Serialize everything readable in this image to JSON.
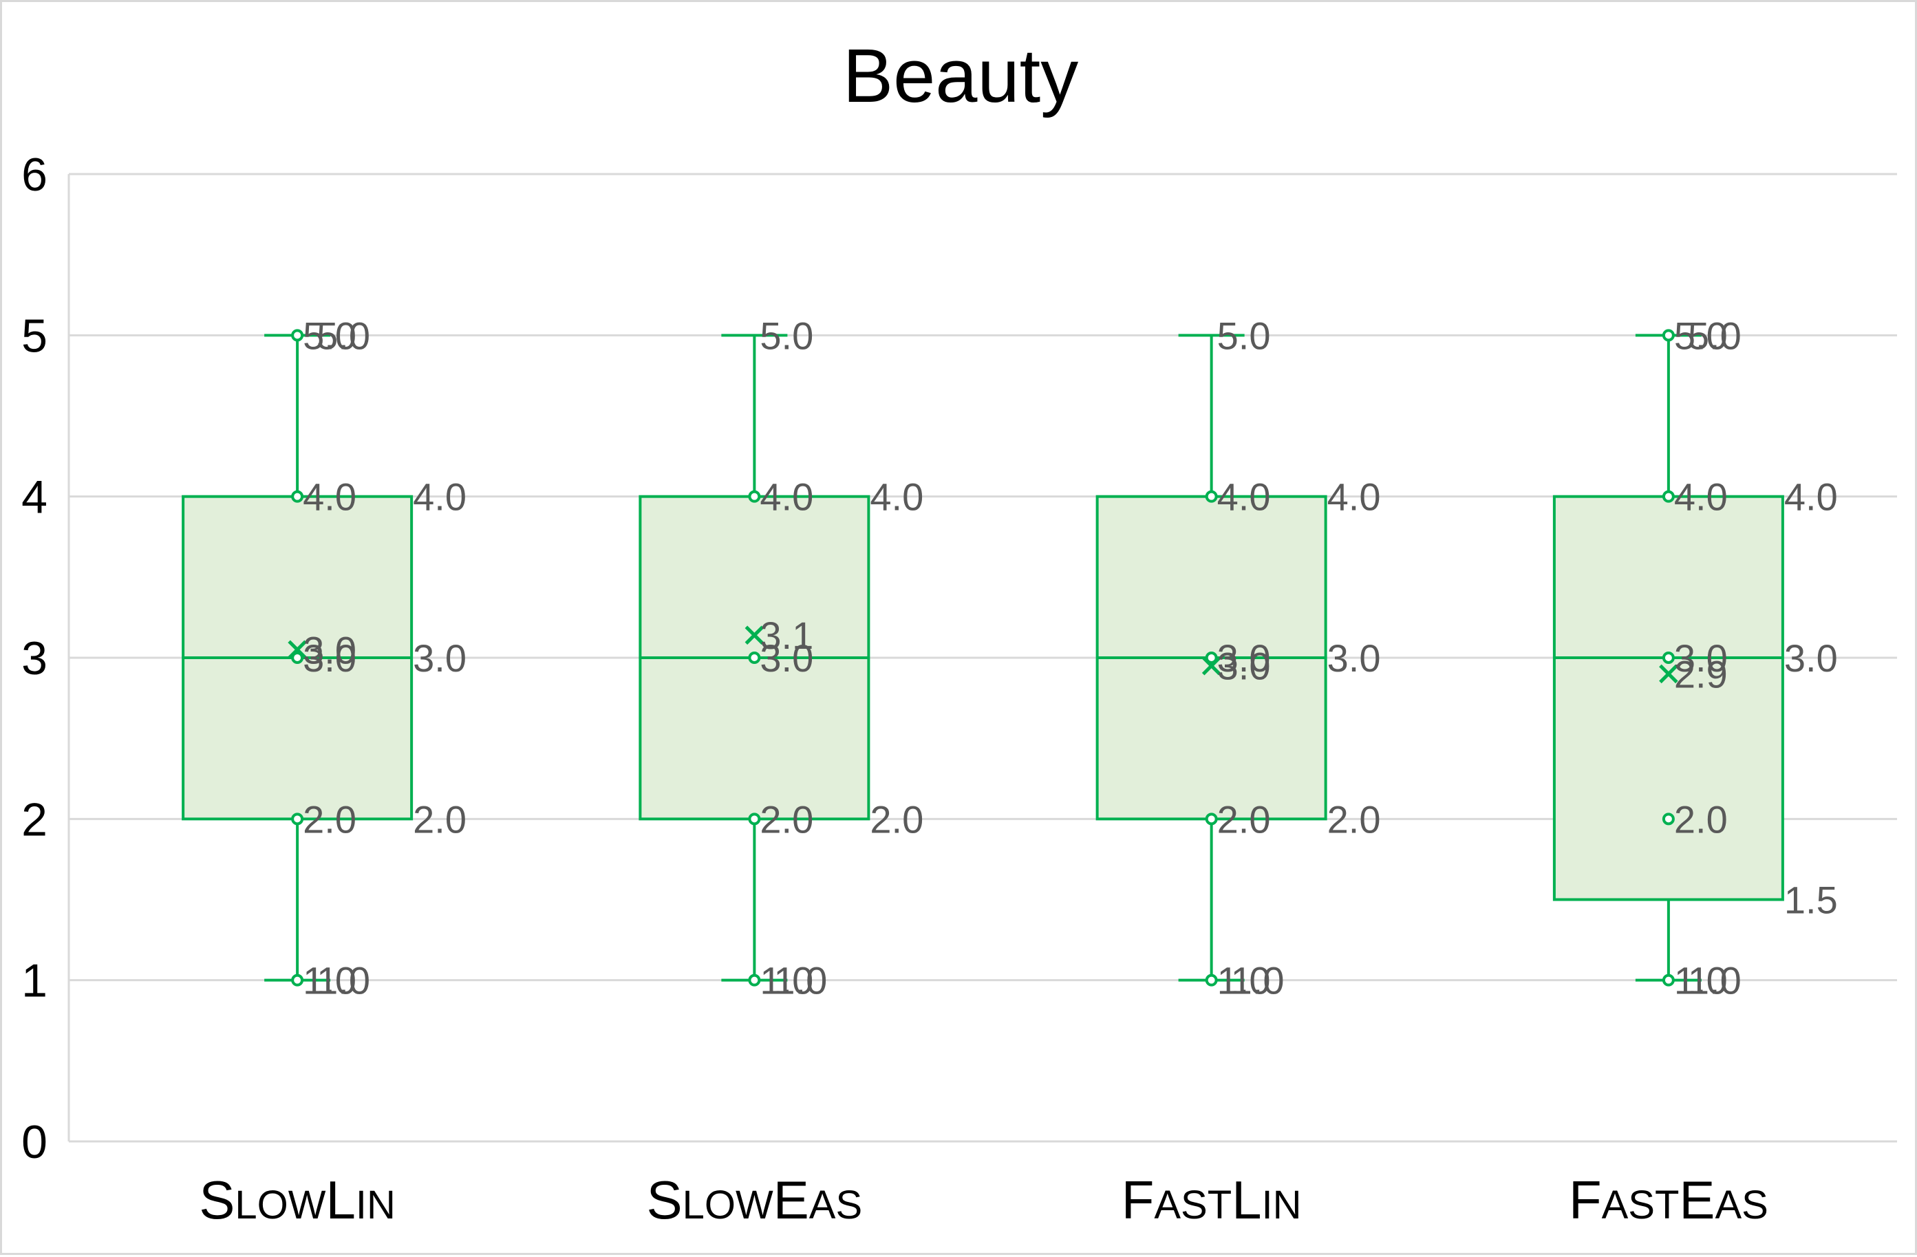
{
  "chart_data": {
    "type": "box",
    "title": "Beauty",
    "xlabel": "",
    "ylabel": "",
    "ylim": [
      0,
      6
    ],
    "yticks": [
      "0",
      "1",
      "2",
      "3",
      "4",
      "5",
      "6"
    ],
    "grid": true,
    "legend": "none",
    "color": "#00b050",
    "fill": "#e2efda",
    "categories": [
      {
        "big": "S",
        "small": "LOW",
        "big2": "L",
        "small2": "IN"
      },
      {
        "big": "S",
        "small": "LOW",
        "big2": "E",
        "small2": "AS"
      },
      {
        "big": "F",
        "small": "AST",
        "big2": "L",
        "small2": "IN"
      },
      {
        "big": "F",
        "small": "AST",
        "big2": "E",
        "small2": "AS"
      }
    ],
    "boxes": [
      {
        "min": 1.0,
        "q1": 2.0,
        "median": 3.0,
        "q3": 4.0,
        "max": 5.0,
        "mean": 3.05,
        "points": [
          1.0,
          2.0,
          3.0,
          4.0,
          5.0
        ],
        "labels": [
          {
            "text": "1.0",
            "y": 1.0,
            "side": "center"
          },
          {
            "text": "1.0",
            "y": 1.0,
            "side": "center2"
          },
          {
            "text": "2.0",
            "y": 2.0,
            "side": "center"
          },
          {
            "text": "3.0",
            "y": 3.0,
            "side": "center"
          },
          {
            "text": "3.0",
            "y": 3.05,
            "side": "center"
          },
          {
            "text": "4.0",
            "y": 4.0,
            "side": "center"
          },
          {
            "text": "5.0",
            "y": 5.0,
            "side": "center"
          },
          {
            "text": "5.0",
            "y": 5.0,
            "side": "center2"
          },
          {
            "text": "2.0",
            "y": 2.0,
            "side": "right"
          },
          {
            "text": "3.0",
            "y": 3.0,
            "side": "right"
          },
          {
            "text": "4.0",
            "y": 4.0,
            "side": "right"
          }
        ]
      },
      {
        "min": 1.0,
        "q1": 2.0,
        "median": 3.0,
        "q3": 4.0,
        "max": 5.0,
        "mean": 3.14,
        "points": [
          1.0,
          2.0,
          3.0,
          4.0
        ],
        "labels": [
          {
            "text": "1.0",
            "y": 1.0,
            "side": "center"
          },
          {
            "text": "1.0",
            "y": 1.0,
            "side": "center2"
          },
          {
            "text": "2.0",
            "y": 2.0,
            "side": "center"
          },
          {
            "text": "3.0",
            "y": 3.0,
            "side": "center"
          },
          {
            "text": "3.1",
            "y": 3.14,
            "side": "center"
          },
          {
            "text": "4.0",
            "y": 4.0,
            "side": "center"
          },
          {
            "text": "5.0",
            "y": 5.0,
            "side": "center"
          },
          {
            "text": "2.0",
            "y": 2.0,
            "side": "right"
          },
          {
            "text": "4.0",
            "y": 4.0,
            "side": "right"
          }
        ]
      },
      {
        "min": 1.0,
        "q1": 2.0,
        "median": 3.0,
        "q3": 4.0,
        "max": 5.0,
        "mean": 2.95,
        "points": [
          1.0,
          2.0,
          3.0,
          4.0
        ],
        "labels": [
          {
            "text": "1.0",
            "y": 1.0,
            "side": "center"
          },
          {
            "text": "1.0",
            "y": 1.0,
            "side": "center2"
          },
          {
            "text": "2.0",
            "y": 2.0,
            "side": "center"
          },
          {
            "text": "3.0",
            "y": 3.0,
            "side": "center"
          },
          {
            "text": "3.0",
            "y": 2.95,
            "side": "center"
          },
          {
            "text": "4.0",
            "y": 4.0,
            "side": "center"
          },
          {
            "text": "5.0",
            "y": 5.0,
            "side": "center"
          },
          {
            "text": "2.0",
            "y": 2.0,
            "side": "right"
          },
          {
            "text": "3.0",
            "y": 3.0,
            "side": "right"
          },
          {
            "text": "4.0",
            "y": 4.0,
            "side": "right"
          }
        ]
      },
      {
        "min": 1.0,
        "q1": 1.5,
        "median": 3.0,
        "q3": 4.0,
        "max": 5.0,
        "mean": 2.9,
        "points": [
          1.0,
          2.0,
          3.0,
          4.0,
          5.0
        ],
        "labels": [
          {
            "text": "1.0",
            "y": 1.0,
            "side": "center"
          },
          {
            "text": "1.0",
            "y": 1.0,
            "side": "center2"
          },
          {
            "text": "2.0",
            "y": 2.0,
            "side": "center"
          },
          {
            "text": "3.0",
            "y": 3.0,
            "side": "center"
          },
          {
            "text": "2.9",
            "y": 2.9,
            "side": "center"
          },
          {
            "text": "4.0",
            "y": 4.0,
            "side": "center"
          },
          {
            "text": "5.0",
            "y": 5.0,
            "side": "center"
          },
          {
            "text": "5.0",
            "y": 5.0,
            "side": "center2"
          },
          {
            "text": "1.5",
            "y": 1.5,
            "side": "right"
          },
          {
            "text": "3.0",
            "y": 3.0,
            "side": "right"
          },
          {
            "text": "4.0",
            "y": 4.0,
            "side": "right"
          }
        ]
      }
    ]
  }
}
